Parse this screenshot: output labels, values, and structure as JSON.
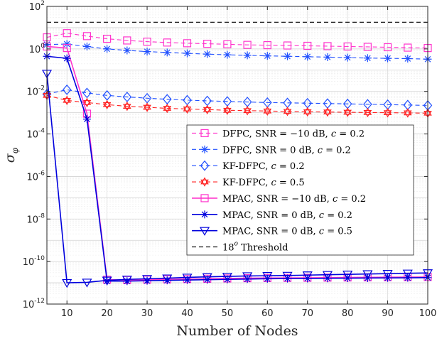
{
  "chart_data": {
    "type": "line",
    "title": "",
    "xlabel": "Number of Nodes",
    "ylabel": "σ_φ",
    "x_scale": "linear",
    "y_scale": "log",
    "xlim": [
      5,
      100
    ],
    "ylim_exp": [
      -12,
      2
    ],
    "x_ticks": [
      10,
      20,
      30,
      40,
      50,
      60,
      70,
      80,
      90,
      100
    ],
    "y_ticks": [
      {
        "base": "10",
        "exp": "-12",
        "value": -12
      },
      {
        "base": "10",
        "exp": "-10",
        "value": -10
      },
      {
        "base": "10",
        "exp": "-8",
        "value": -8
      },
      {
        "base": "10",
        "exp": "-6",
        "value": -6
      },
      {
        "base": "10",
        "exp": "-4",
        "value": -4
      },
      {
        "base": "10",
        "exp": "-2",
        "value": -2
      },
      {
        "base": "10",
        "exp": "0",
        "value": 0
      },
      {
        "base": "10",
        "exp": "2",
        "value": 2
      }
    ],
    "grid": true,
    "legend_position": "center-right",
    "x": [
      5,
      10,
      15,
      20,
      25,
      30,
      35,
      40,
      45,
      50,
      55,
      60,
      65,
      70,
      75,
      80,
      85,
      90,
      95,
      100
    ],
    "series": [
      {
        "name": "DFPC, SNR = −10 dB, c = 0.2",
        "color": "#ff33cc",
        "dash": "6,4",
        "marker": "square",
        "values": [
          3.5,
          5.5,
          4.0,
          3.0,
          2.5,
          2.2,
          2.0,
          1.85,
          1.75,
          1.65,
          1.55,
          1.5,
          1.45,
          1.4,
          1.35,
          1.3,
          1.25,
          1.2,
          1.15,
          1.1
        ]
      },
      {
        "name": "DFPC, SNR = 0 dB, c = 0.2",
        "color": "#1f4fff",
        "dash": "6,4",
        "marker": "asterisk",
        "values": [
          1.6,
          1.7,
          1.3,
          1.0,
          0.85,
          0.75,
          0.68,
          0.62,
          0.57,
          0.53,
          0.5,
          0.47,
          0.45,
          0.43,
          0.41,
          0.39,
          0.37,
          0.36,
          0.35,
          0.33
        ]
      },
      {
        "name": "KF-DFPC, c = 0.2",
        "color": "#1f4fff",
        "dash": "6,4",
        "marker": "diamond",
        "values": [
          0.0075,
          0.012,
          0.0085,
          0.0065,
          0.0055,
          0.0048,
          0.0043,
          0.0039,
          0.0036,
          0.0034,
          0.0032,
          0.003,
          0.0029,
          0.0028,
          0.0027,
          0.0026,
          0.0025,
          0.0024,
          0.0023,
          0.0022
        ]
      },
      {
        "name": "KF-DFPC, c = 0.5",
        "color": "#ff2020",
        "dash": "6,4",
        "marker": "hexagram",
        "values": [
          0.0065,
          0.0038,
          0.003,
          0.0024,
          0.002,
          0.0018,
          0.0016,
          0.0015,
          0.0014,
          0.0013,
          0.00125,
          0.0012,
          0.00115,
          0.0011,
          0.00108,
          0.00105,
          0.00102,
          0.001,
          0.00098,
          0.00095
        ]
      },
      {
        "name": "MPAC, SNR = −10 dB, c = 0.2",
        "color": "#ff33cc",
        "dash": "",
        "marker": "square",
        "values": [
          1.3,
          1.1,
          0.0009,
          1.4e-11,
          1.35e-11,
          1.4e-11,
          1.45e-11,
          1.5e-11,
          1.55e-11,
          1.6e-11,
          1.65e-11,
          1.68e-11,
          1.7e-11,
          1.72e-11,
          1.75e-11,
          1.78e-11,
          1.8e-11,
          1.83e-11,
          1.85e-11,
          1.88e-11
        ]
      },
      {
        "name": "MPAC, SNR = 0 dB, c = 0.2",
        "color": "#0000dd",
        "dash": "",
        "marker": "asterisk",
        "values": [
          0.45,
          0.36,
          0.0005,
          1.2e-11,
          1.2e-11,
          1.25e-11,
          1.3e-11,
          1.35e-11,
          1.4e-11,
          1.45e-11,
          1.5e-11,
          1.55e-11,
          1.58e-11,
          1.6e-11,
          1.63e-11,
          1.65e-11,
          1.68e-11,
          1.7e-11,
          1.72e-11,
          1.75e-11
        ]
      },
      {
        "name": "MPAC, SNR = 0 dB, c = 0.5",
        "color": "#0000dd",
        "dash": "",
        "marker": "triangle-down",
        "values": [
          0.07,
          1e-11,
          1.05e-11,
          1.3e-11,
          1.45e-11,
          1.55e-11,
          1.65e-11,
          1.8e-11,
          1.9e-11,
          2e-11,
          2.1e-11,
          2.15e-11,
          2.2e-11,
          2.3e-11,
          2.4e-11,
          2.5e-11,
          2.6e-11,
          2.7e-11,
          2.8e-11,
          2.9e-11
        ]
      },
      {
        "name": "18° Threshold",
        "color": "#000000",
        "dash": "6,4",
        "marker": "none",
        "values": [
          18,
          18,
          18,
          18,
          18,
          18,
          18,
          18,
          18,
          18,
          18,
          18,
          18,
          18,
          18,
          18,
          18,
          18,
          18,
          18
        ]
      }
    ],
    "legend_labels": [
      {
        "prefix": "DFPC, SNR = ",
        "math": "−10 dB, ",
        "var": "c",
        "suffix": " = 0.2"
      },
      {
        "prefix": "DFPC, SNR = ",
        "math": "0 dB, ",
        "var": "c",
        "suffix": " = 0.2"
      },
      {
        "prefix": "KF-DFPC, ",
        "math": "",
        "var": "c",
        "suffix": " = 0.2"
      },
      {
        "prefix": "KF-DFPC, ",
        "math": "",
        "var": "c",
        "suffix": " = 0.5"
      },
      {
        "prefix": "MPAC, SNR = ",
        "math": "−10 dB, ",
        "var": "c",
        "suffix": " = 0.2"
      },
      {
        "prefix": "MPAC, SNR = ",
        "math": "0 dB, ",
        "var": "c",
        "suffix": " = 0.2"
      },
      {
        "prefix": "MPAC, SNR = ",
        "math": "0 dB, ",
        "var": "c",
        "suffix": " = 0.5"
      },
      {
        "prefix": "18",
        "math": "o",
        "var": "",
        "suffix": " Threshold"
      }
    ]
  }
}
